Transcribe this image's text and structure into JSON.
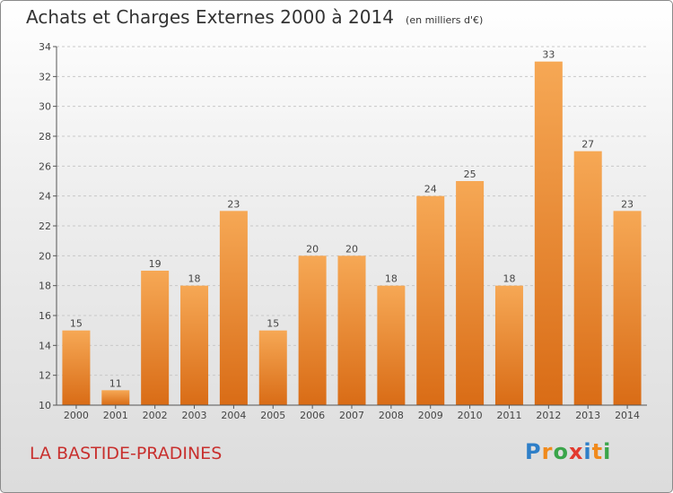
{
  "chart_data": {
    "type": "bar",
    "title": "Achats et Charges Externes 2000 à 2014",
    "subtitle": "(en milliers d'€)",
    "categories": [
      "2000",
      "2001",
      "2002",
      "2003",
      "2004",
      "2005",
      "2006",
      "2007",
      "2008",
      "2009",
      "2010",
      "2011",
      "2012",
      "2013",
      "2014"
    ],
    "values": [
      15,
      11,
      19,
      18,
      23,
      15,
      20,
      20,
      18,
      24,
      25,
      18,
      33,
      27,
      23
    ],
    "ylim": [
      10,
      34
    ],
    "yticks": [
      10,
      12,
      14,
      16,
      18,
      20,
      22,
      24,
      26,
      28,
      30,
      32,
      34
    ],
    "xlabel": "",
    "ylabel": "",
    "grid": true,
    "bar_color_top": "#f6a855",
    "bar_color_bottom": "#d96c16"
  },
  "footer": {
    "location": "LA BASTIDE-PRADINES"
  },
  "brand": {
    "letters": [
      "P",
      "r",
      "o",
      "x",
      "i",
      "t",
      "i"
    ],
    "colors": [
      "#2e7fc8",
      "#f08a1c",
      "#3aa54a",
      "#e23a2e",
      "#2e7fc8",
      "#f08a1c",
      "#3aa54a"
    ]
  }
}
